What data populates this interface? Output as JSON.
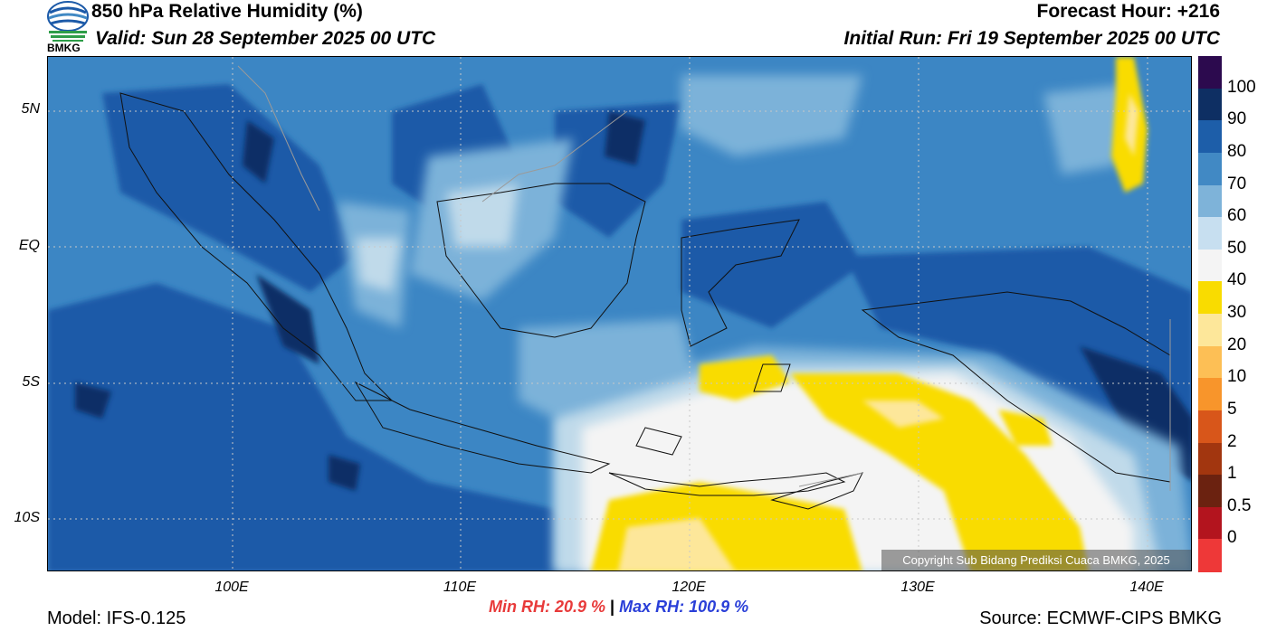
{
  "header": {
    "title": "850 hPa Relative Humidity (%)",
    "valid": "Valid: Sun 28 September 2025 00 UTC",
    "forecast_hour": "Forecast Hour: +216",
    "initial_run": "Initial Run: Fri 19 September 2025 00 UTC",
    "logo_text": "BMKG"
  },
  "map": {
    "lat_labels": [
      "5N",
      "EQ",
      "5S",
      "10S"
    ],
    "lon_labels": [
      "100E",
      "110E",
      "120E",
      "130E",
      "140E"
    ],
    "copyright": "Copyright Sub Bidang Prediksi Cuaca BMKG, 2025",
    "colors": {
      "very_humid": "#0b2f66",
      "humid_90": "#1c5aa8",
      "humid_80": "#3c86c4",
      "humid_70": "#7cb2d9",
      "humid_60": "#c0daea",
      "humid_50": "#f4f4f4",
      "dry_40": "#f9dc00",
      "dry_30": "#fde79a"
    }
  },
  "colorbar": {
    "labels": [
      "100",
      "90",
      "80",
      "70",
      "60",
      "50",
      "40",
      "30",
      "20",
      "10",
      "5",
      "2",
      "1",
      "0.5",
      "0"
    ],
    "colors": [
      "#2c0a4e",
      "#0e2f63",
      "#1d5ea9",
      "#4189c4",
      "#7eb3d9",
      "#c7dff0",
      "#f4f4f4",
      "#f9dc00",
      "#fde79a",
      "#fdbf55",
      "#f8952b",
      "#d8561a",
      "#a2360f",
      "#6b2210",
      "#b3141e",
      "#ee3838"
    ]
  },
  "footer": {
    "min_rh": "Min RH:  20.9 %",
    "separator": "|",
    "max_rh": "Max RH: 100.9 %",
    "model": "Model: IFS-0.125",
    "source": "Source: ECMWF-CIPS BMKG"
  }
}
